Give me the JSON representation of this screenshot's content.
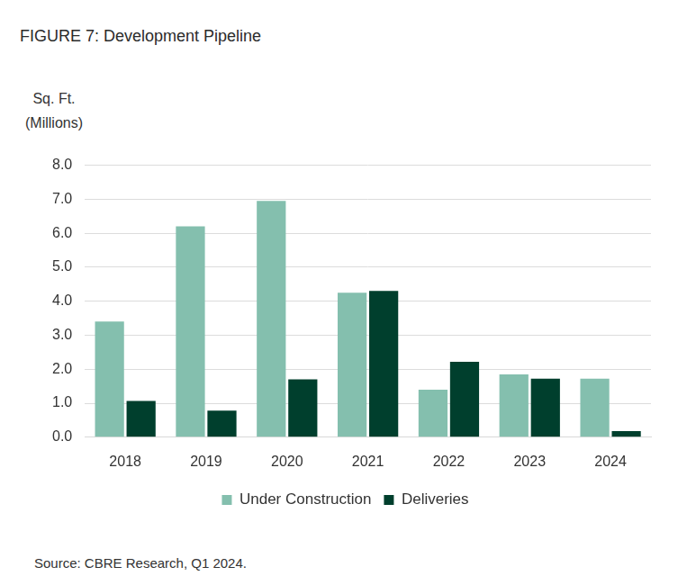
{
  "chart_data": {
    "type": "bar",
    "title": "FIGURE 7: Development Pipeline",
    "y_label": "Sq. Ft.\n(Millions)",
    "source": "Source: CBRE Research, Q1 2024.",
    "categories": [
      "2018",
      "2019",
      "2020",
      "2021",
      "2022",
      "2023",
      "2024"
    ],
    "series": [
      {
        "name": "Under Construction",
        "color": "#84bfae",
        "values": [
          3.4,
          6.2,
          6.95,
          4.25,
          1.4,
          1.85,
          1.72
        ]
      },
      {
        "name": "Deliveries",
        "color": "#003f2d",
        "values": [
          1.07,
          0.78,
          1.7,
          4.3,
          2.22,
          1.72,
          0.18
        ]
      }
    ],
    "ylim": [
      0,
      8
    ],
    "yticks": [
      {
        "value": 0,
        "label": "0.0"
      },
      {
        "value": 1,
        "label": "1.0"
      },
      {
        "value": 2,
        "label": "2.0"
      },
      {
        "value": 3,
        "label": "3.0"
      },
      {
        "value": 4,
        "label": "4.0"
      },
      {
        "value": 5,
        "label": "5.0"
      },
      {
        "value": 6,
        "label": "6.0"
      },
      {
        "value": 7,
        "label": "7.0"
      },
      {
        "value": 8,
        "label": "8.0"
      }
    ],
    "grid": true,
    "legend": "bottom"
  }
}
